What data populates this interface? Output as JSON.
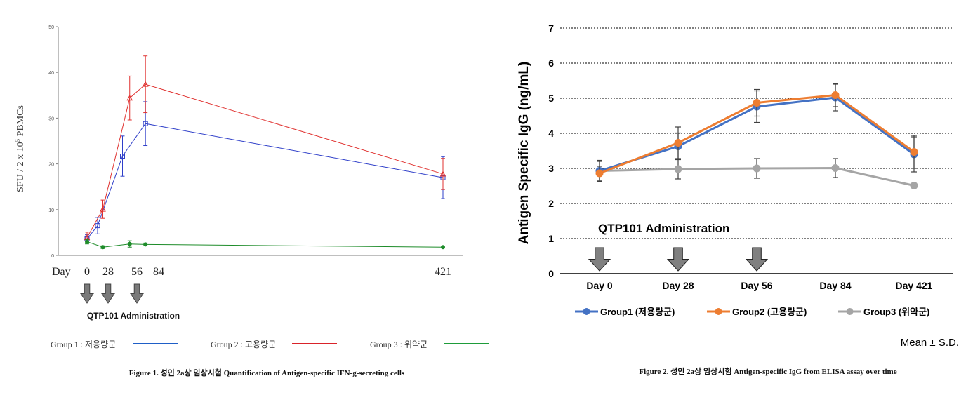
{
  "chart_data": [
    {
      "type": "line",
      "ylabel": "SFU / 2 x 10",
      "ylabel_sup": "5",
      "ylabel_tail": " PBMCs",
      "x_prefix": "Day",
      "x": [
        0,
        28,
        56,
        84,
        421
      ],
      "x_labels": [
        "0",
        "28",
        "56",
        "84",
        "421"
      ],
      "ylim": [
        0,
        50
      ],
      "yticks": [
        "0",
        "10",
        "20",
        "30",
        "40",
        "50"
      ],
      "series": [
        {
          "name": "Group 1 : 저용량군",
          "color": "#2f3fc9",
          "marker": "square",
          "points": [
            [
              0,
              3.6
            ],
            [
              14,
              6.5
            ],
            [
              42,
              21.7
            ],
            [
              67,
              28.8
            ],
            [
              421,
              17.0
            ]
          ],
          "err": [
            0.9,
            1.8,
            4.4,
            4.8,
            4.6
          ]
        },
        {
          "name": "Group 2 : 고용량군",
          "color": "#e0312f",
          "marker": "triangle",
          "points": [
            [
              0,
              3.9
            ],
            [
              21,
              10.1
            ],
            [
              49,
              34.4
            ],
            [
              67,
              37.4
            ],
            [
              421,
              17.8
            ]
          ],
          "err": [
            1.2,
            2.0,
            4.8,
            6.2,
            3.4
          ]
        },
        {
          "name": "Group 3 : 위약군",
          "color": "#1e8c2a",
          "marker": "circle",
          "points": [
            [
              0,
              3.0
            ],
            [
              21,
              1.8
            ],
            [
              49,
              2.5
            ],
            [
              67,
              2.4
            ],
            [
              421,
              1.8
            ]
          ],
          "err": [
            0.5,
            0.3,
            0.7,
            0.3,
            0
          ]
        }
      ],
      "administration_days": [
        0,
        28,
        56
      ],
      "annotation": "QTP101 Administration",
      "caption": "Figure 1. 성인 2a상 임상시험 Quantification of Antigen-specific IFN-g-secreting cells",
      "legend_position": "bottom",
      "grid": false
    },
    {
      "type": "line",
      "ylabel": "Antigen Specific IgG (ng/mL)",
      "categories": [
        "Day 0",
        "Day 28",
        "Day 56",
        "Day 84",
        "Day 421"
      ],
      "ylim": [
        0,
        7
      ],
      "yticks": [
        "0",
        "1",
        "2",
        "3",
        "4",
        "5",
        "6",
        "7"
      ],
      "series": [
        {
          "name": "Group1 (저용량군)",
          "color": "#4472c4",
          "values": [
            2.93,
            3.63,
            4.76,
            5.02,
            3.4
          ],
          "err": [
            0.27,
            0.38,
            0.45,
            0.38,
            0.5
          ]
        },
        {
          "name": "Group2 (고용량군)",
          "color": "#ed7d31",
          "values": [
            2.86,
            3.73,
            4.87,
            5.09,
            3.47
          ],
          "err": [
            0.2,
            0.45,
            0.38,
            0.33,
            0.47
          ]
        },
        {
          "name": "Group3 (위약군)",
          "color": "#a5a5a5",
          "values": [
            2.93,
            2.98,
            3.0,
            3.01,
            2.51
          ],
          "err": [
            0.3,
            0.28,
            0.28,
            0.27,
            0
          ]
        }
      ],
      "administration_categories": [
        "Day 0",
        "Day 28",
        "Day 56"
      ],
      "annotation": "QTP101 Administration",
      "note": "Mean ± S.D.",
      "caption": "Figure 2. 성인 2a상 임상시험 Antigen-specific IgG from ELISA assay over time",
      "legend_position": "bottom",
      "grid": true
    }
  ]
}
